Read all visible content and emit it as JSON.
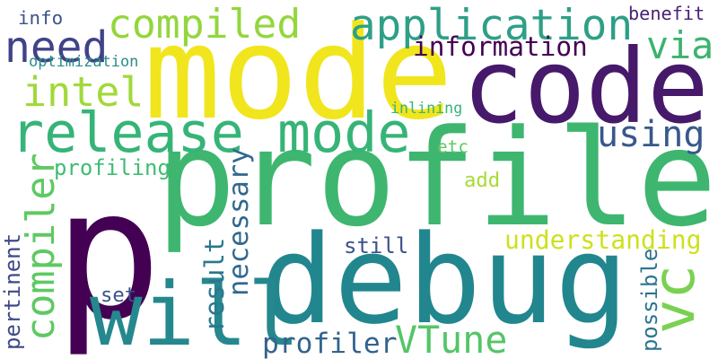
{
  "words": [
    {
      "key": "p",
      "text": "p",
      "color": "#440154"
    },
    {
      "key": "profile",
      "text": "profile",
      "color": "#3eb66f"
    },
    {
      "key": "code",
      "text": "code",
      "color": "#46196b"
    },
    {
      "key": "mode",
      "text": "mode",
      "color": "#f1e51d"
    },
    {
      "key": "debug",
      "text": "debug",
      "color": "#22868e"
    },
    {
      "key": "release_mode",
      "text": "release mode",
      "color": "#36b478"
    },
    {
      "key": "will",
      "text": "will",
      "color": "#25888e"
    },
    {
      "key": "application",
      "text": "application",
      "color": "#2e9f87"
    },
    {
      "key": "compiled",
      "text": "compiled",
      "color": "#93d63d"
    },
    {
      "key": "need",
      "text": "need",
      "color": "#414287"
    },
    {
      "key": "intel",
      "text": "intel",
      "color": "#a1d93a"
    },
    {
      "key": "via",
      "text": "via",
      "color": "#3db36e"
    },
    {
      "key": "using",
      "text": "using",
      "color": "#38588c"
    },
    {
      "key": "information",
      "text": "information",
      "color": "#440154"
    },
    {
      "key": "info",
      "text": "info",
      "color": "#3b528b"
    },
    {
      "key": "benefit",
      "text": "benefit",
      "color": "#482374"
    },
    {
      "key": "optimization",
      "text": "optimization",
      "color": "#2a8c8a"
    },
    {
      "key": "inlining",
      "text": "inlining",
      "color": "#34b679"
    },
    {
      "key": "compiler",
      "text": "compiler",
      "color": "#5ec962"
    },
    {
      "key": "profiling",
      "text": "profiling",
      "color": "#3fbc73"
    },
    {
      "key": "etc",
      "text": "etc",
      "color": "#5ec962"
    },
    {
      "key": "add",
      "text": "add",
      "color": "#a8db34"
    },
    {
      "key": "necessary",
      "text": "necessary",
      "color": "#31688e"
    },
    {
      "key": "result",
      "text": "result",
      "color": "#2a778e"
    },
    {
      "key": "understanding",
      "text": "understanding",
      "color": "#cde11d"
    },
    {
      "key": "still",
      "text": "still",
      "color": "#3b528b"
    },
    {
      "key": "vc",
      "text": "vc",
      "color": "#7ad151"
    },
    {
      "key": "pertinent",
      "text": "pertinent",
      "color": "#3e4989"
    },
    {
      "key": "set",
      "text": "set",
      "color": "#3b528b"
    },
    {
      "key": "profiler",
      "text": "profiler",
      "color": "#33638d"
    },
    {
      "key": "vtune",
      "text": "VTune",
      "color": "#54c568"
    },
    {
      "key": "possible",
      "text": "possible",
      "color": "#2b758e"
    }
  ]
}
